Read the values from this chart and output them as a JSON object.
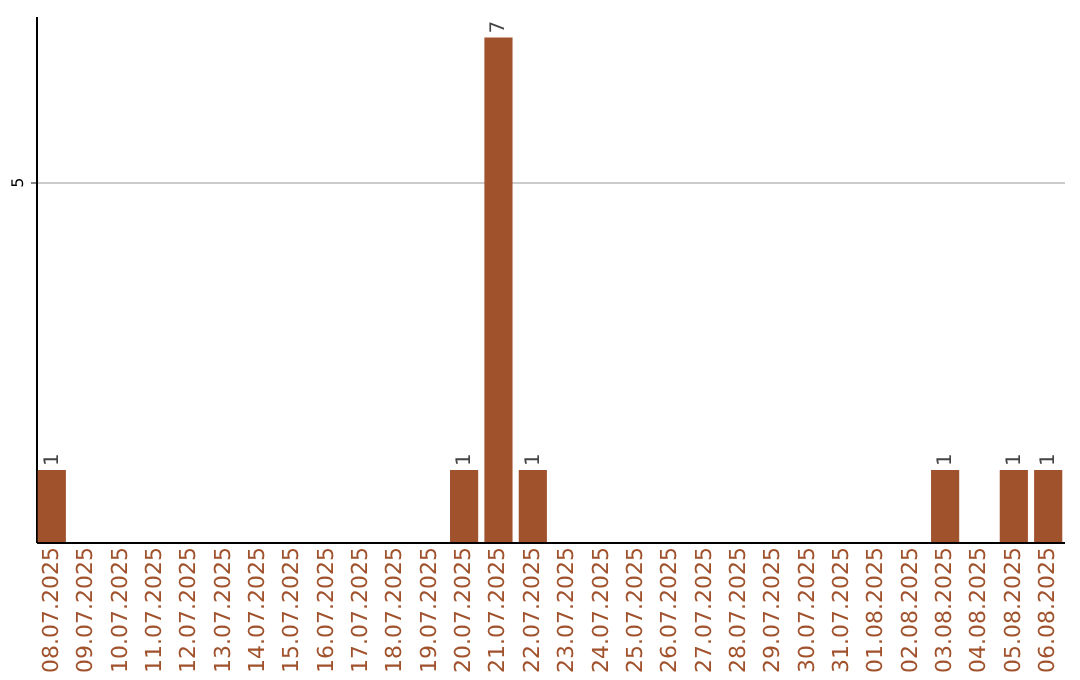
{
  "chart_data": {
    "type": "bar",
    "categories": [
      "08.07.2025",
      "09.07.2025",
      "10.07.2025",
      "11.07.2025",
      "12.07.2025",
      "13.07.2025",
      "14.07.2025",
      "15.07.2025",
      "16.07.2025",
      "17.07.2025",
      "18.07.2025",
      "19.07.2025",
      "20.07.2025",
      "21.07.2025",
      "22.07.2025",
      "23.07.2025",
      "24.07.2025",
      "25.07.2025",
      "26.07.2025",
      "27.07.2025",
      "28.07.2025",
      "29.07.2025",
      "30.07.2025",
      "31.07.2025",
      "01.08.2025",
      "02.08.2025",
      "03.08.2025",
      "04.08.2025",
      "05.08.2025",
      "06.08.2025"
    ],
    "values": [
      1,
      0,
      0,
      0,
      0,
      0,
      0,
      0,
      0,
      0,
      0,
      0,
      1,
      7,
      1,
      0,
      0,
      0,
      0,
      0,
      0,
      0,
      0,
      0,
      0,
      0,
      1,
      0,
      1,
      1
    ],
    "value_labels": [
      "1",
      null,
      null,
      null,
      null,
      null,
      null,
      null,
      null,
      null,
      null,
      null,
      "1",
      "7",
      "1",
      null,
      null,
      null,
      null,
      null,
      null,
      null,
      null,
      null,
      null,
      null,
      "1",
      null,
      "1",
      "1"
    ],
    "color": "#a0522d",
    "ylim": [
      0,
      7.3
    ],
    "yticks": [
      5
    ],
    "grid": "y"
  }
}
